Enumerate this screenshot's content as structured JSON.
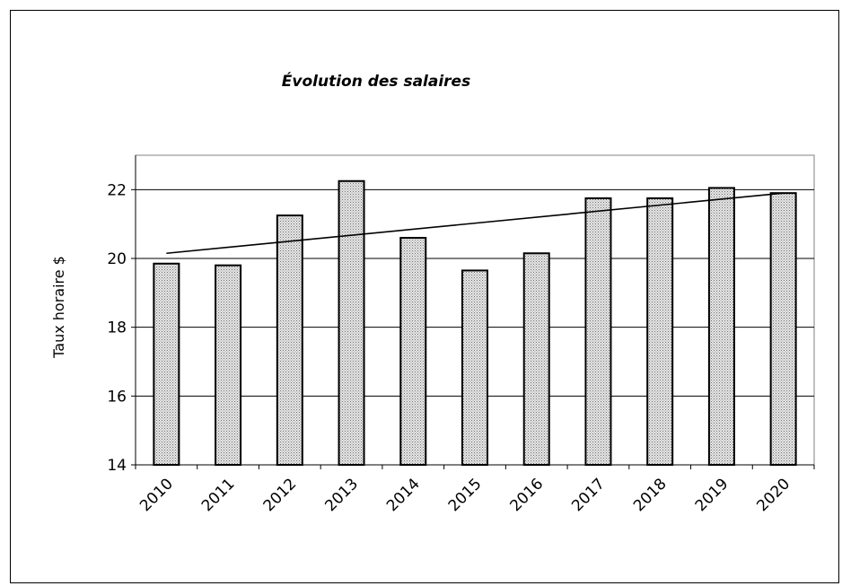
{
  "chart_data": {
    "type": "bar",
    "title": "Évolution des salaires",
    "xlabel": "",
    "ylabel": "Taux horaire $",
    "categories": [
      "2010",
      "2011",
      "2012",
      "2013",
      "2014",
      "2015",
      "2016",
      "2017",
      "2018",
      "2019",
      "2020"
    ],
    "values": [
      19.85,
      19.8,
      21.25,
      22.25,
      20.6,
      19.65,
      20.15,
      21.75,
      21.75,
      22.05,
      21.9
    ],
    "ylim": [
      14,
      23
    ],
    "yticks": [
      "14",
      "16",
      "18",
      "20",
      "22"
    ],
    "grid": true,
    "legend": "none",
    "trendline": {
      "type": "linear",
      "start": 20.15,
      "end": 21.9
    },
    "colors": {
      "bar_fill": "#c8c8c8",
      "bar_edge": "#000000",
      "grid": "#000000",
      "trend": "#000000"
    }
  }
}
